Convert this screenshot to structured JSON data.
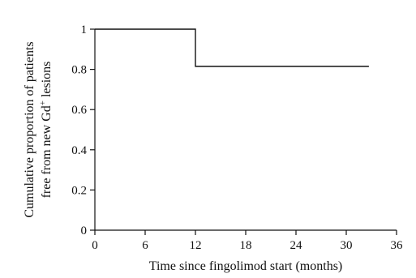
{
  "chart_data": {
    "type": "line",
    "step": true,
    "title": "",
    "xlabel": "Time since fingolimod start (months)",
    "ylabel": {
      "line1": "Cumulative proportion of patients",
      "line2_prefix": "free from new Gd",
      "line2_sup": "+",
      "line2_suffix": " lesions"
    },
    "xlim": [
      0,
      36
    ],
    "ylim": [
      0,
      1
    ],
    "xticks": [
      0,
      6,
      12,
      18,
      24,
      30,
      36
    ],
    "yticks": [
      0,
      0.2,
      0.4,
      0.6,
      0.8,
      1
    ],
    "ytick_labels": [
      "0",
      "0.2",
      "0.4",
      "0.6",
      "0.8",
      "1"
    ],
    "grid": false,
    "series": [
      {
        "points": [
          {
            "x": 0,
            "y": 1
          },
          {
            "x": 12,
            "y": 1
          },
          {
            "x": 12,
            "y": 0.815
          },
          {
            "x": 32.7,
            "y": 0.815
          }
        ]
      }
    ]
  }
}
